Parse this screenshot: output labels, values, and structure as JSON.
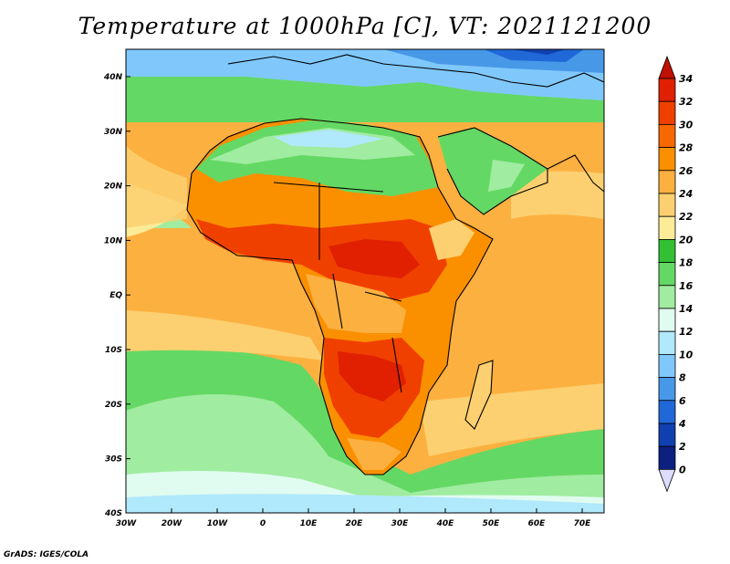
{
  "title": "Temperature at 1000hPa [C], VT: 2021121200",
  "credit": "GrADS: IGES/COLA",
  "map": {
    "lon_ticks": [
      "30W",
      "20W",
      "10W",
      "0",
      "10E",
      "20E",
      "30E",
      "40E",
      "50E",
      "60E",
      "70E"
    ],
    "lat_ticks": [
      "40N",
      "30N",
      "20N",
      "10N",
      "EQ",
      "10S",
      "20S",
      "30S",
      "40S"
    ],
    "lon_range": [
      -30,
      75
    ],
    "lat_range": [
      -40,
      45
    ]
  },
  "colorbar": {
    "labels": [
      "34",
      "32",
      "30",
      "28",
      "26",
      "24",
      "22",
      "20",
      "18",
      "16",
      "14",
      "12",
      "10",
      "8",
      "6",
      "4",
      "2",
      "0"
    ],
    "colors": [
      "#e02000",
      "#f04000",
      "#f86800",
      "#fa9000",
      "#fcb040",
      "#fcd070",
      "#fcec98",
      "#34c034",
      "#64d864",
      "#a0eca0",
      "#e0fcf0",
      "#b0e8fc",
      "#80c8fc",
      "#4898e8",
      "#2068d8",
      "#1040b0",
      "#0c2080",
      "#080860"
    ],
    "top_arrow_color": "#c01000",
    "bottom_arrow_color": "#dcdcfc"
  },
  "palette": {
    "ocean_south_cold": "#64d864",
    "ocean_tropical": "#fcb040",
    "ocean_subtropical": "#fcd070",
    "land_hot": "#f04000",
    "land_warm": "#fa9000",
    "land_mild": "#34c034",
    "land_cool": "#80c8fc",
    "coast_line": "#000000"
  }
}
